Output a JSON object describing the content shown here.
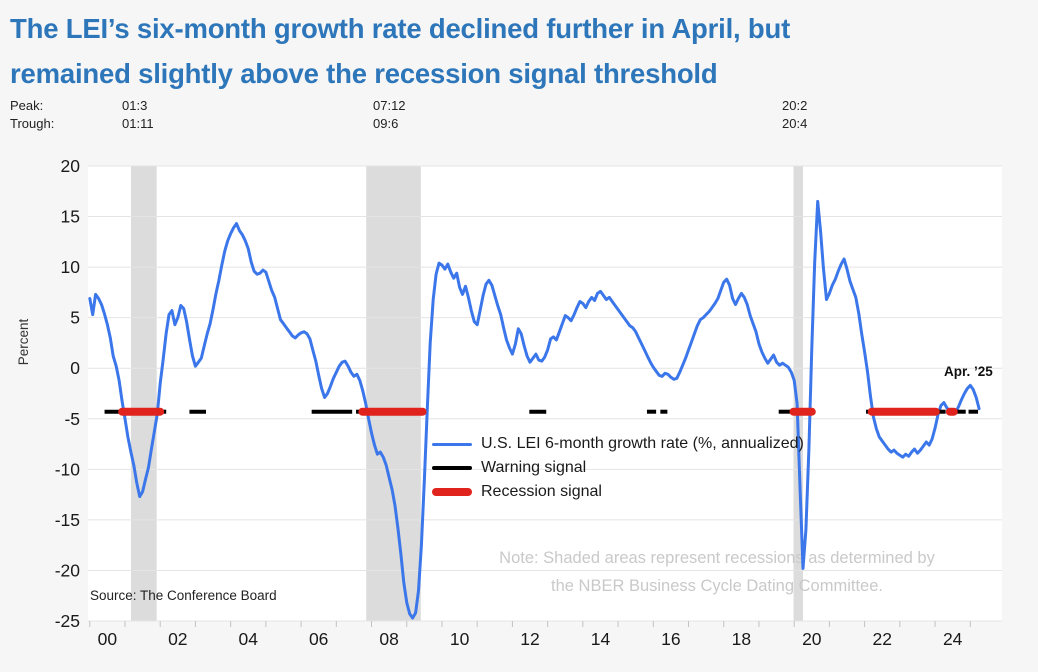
{
  "title": {
    "line1": "The LEI’s six-month growth rate declined further in April, but",
    "line2": "remained slightly above the recession signal threshold"
  },
  "header": {
    "peak_label": "Peak:",
    "trough_label": "Trough:",
    "events": [
      {
        "peak": "01:3",
        "trough": "01:11"
      },
      {
        "peak": "07:12",
        "trough": "09:6"
      },
      {
        "peak": "20:2",
        "trough": "20:4"
      }
    ]
  },
  "legend": {
    "items": [
      {
        "label": "U.S. LEI 6-month growth rate (%, annualized)",
        "style": "line"
      },
      {
        "label": "Warning signal",
        "style": "warning"
      },
      {
        "label": "Recession signal",
        "style": "recession"
      }
    ]
  },
  "annotations": {
    "last_point_label": "Apr. ’25",
    "note_line1": "Note: Shaded areas represent recessions as determined by",
    "note_line2": "the NBER Business Cycle Dating Committee.",
    "source": "Source: The Conference Board"
  },
  "colors": {
    "title": "#2d76ba",
    "line": "#3b77ea",
    "warning": "#000000",
    "recession": "#e0231c",
    "band": "#dcdcdc",
    "grid": "#e4e4e4",
    "tick": "#c2c2c2",
    "axis_text": "#1a1a1a",
    "note": "#c9c9c9",
    "background": "#f6f6f6",
    "plot_background": "#ffffff"
  },
  "chart_data": {
    "type": "line",
    "series_name": "U.S. LEI 6-month growth rate (%, annualized)",
    "ylabel": "Percent",
    "y_ticks": [
      20,
      15,
      10,
      5,
      0,
      -5,
      -10,
      -15,
      -20,
      -25
    ],
    "x_tick_labels": [
      "00",
      "02",
      "04",
      "06",
      "08",
      "10",
      "12",
      "14",
      "16",
      "18",
      "20",
      "22",
      "24"
    ],
    "x_minor_tick_years_start": 2000,
    "x_minor_tick_years_end": 2025,
    "x_range": [
      1999.95,
      2025.9
    ],
    "y_range": [
      -25,
      20
    ],
    "grid": "horizontal",
    "legend_position": "inside-center",
    "threshold_level": -4.3,
    "x_start": 2000.0,
    "x_step": 0.0833333,
    "values": [
      6.9,
      5.3,
      7.3,
      6.9,
      6.3,
      5.4,
      4.3,
      3.0,
      1.2,
      0.2,
      -1.2,
      -3.2,
      -5.0,
      -6.8,
      -8.3,
      -9.6,
      -11.3,
      -12.7,
      -12.2,
      -11.0,
      -9.8,
      -8.0,
      -6.3,
      -4.5,
      -1.5,
      0.8,
      3.4,
      5.3,
      5.7,
      4.3,
      5.0,
      6.2,
      5.9,
      4.6,
      2.8,
      1.2,
      0.2,
      0.6,
      1.0,
      2.2,
      3.4,
      4.4,
      5.8,
      7.4,
      8.7,
      10.2,
      11.6,
      12.6,
      13.3,
      13.9,
      14.3,
      13.6,
      13.2,
      12.6,
      11.8,
      10.5,
      9.6,
      9.3,
      9.4,
      9.7,
      9.5,
      8.6,
      7.7,
      7.0,
      5.9,
      4.8,
      4.4,
      4.0,
      3.6,
      3.2,
      3.0,
      3.3,
      3.5,
      3.6,
      3.4,
      2.9,
      1.8,
      0.7,
      -0.7,
      -2.0,
      -2.9,
      -2.5,
      -1.8,
      -1.0,
      -0.4,
      0.2,
      0.6,
      0.7,
      0.2,
      -0.4,
      -0.8,
      -0.6,
      -1.2,
      -2.2,
      -3.5,
      -5.0,
      -6.4,
      -7.6,
      -8.5,
      -8.3,
      -8.8,
      -9.6,
      -10.8,
      -12.0,
      -13.6,
      -15.8,
      -18.4,
      -21.2,
      -23.2,
      -24.3,
      -24.7,
      -24.2,
      -22.0,
      -17.5,
      -11.0,
      -4.0,
      2.5,
      6.8,
      9.3,
      10.4,
      10.2,
      9.8,
      10.3,
      9.5,
      8.9,
      9.4,
      8.0,
      7.3,
      8.1,
      7.0,
      5.7,
      4.6,
      4.3,
      5.7,
      7.2,
      8.3,
      8.7,
      8.2,
      7.2,
      6.2,
      5.3,
      4.0,
      2.8,
      2.0,
      1.4,
      2.4,
      3.9,
      3.4,
      2.2,
      1.2,
      0.6,
      1.0,
      1.4,
      0.8,
      0.7,
      1.1,
      1.8,
      2.9,
      3.1,
      2.8,
      3.6,
      4.4,
      5.2,
      5.0,
      4.7,
      5.3,
      6.0,
      6.6,
      6.4,
      6.0,
      6.6,
      7.0,
      6.7,
      7.4,
      7.6,
      7.2,
      6.8,
      7.0,
      6.6,
      6.2,
      5.8,
      5.4,
      5.0,
      4.6,
      4.2,
      4.0,
      3.6,
      3.0,
      2.4,
      1.8,
      1.2,
      0.6,
      0.1,
      -0.3,
      -0.7,
      -0.8,
      -0.5,
      -0.6,
      -0.9,
      -1.1,
      -1.0,
      -0.4,
      0.3,
      1.0,
      1.8,
      2.6,
      3.4,
      4.2,
      4.8,
      5.0,
      5.3,
      5.6,
      6.0,
      6.4,
      6.9,
      7.7,
      8.5,
      8.8,
      8.2,
      6.9,
      6.3,
      6.9,
      7.4,
      7.0,
      6.3,
      5.2,
      4.4,
      3.6,
      2.4,
      1.6,
      1.0,
      0.5,
      0.9,
      1.3,
      0.6,
      0.3,
      0.5,
      0.3,
      0.1,
      -0.4,
      -1.2,
      -3.5,
      -12.0,
      -19.8,
      -16.0,
      -8.0,
      2.0,
      10.5,
      16.5,
      13.5,
      9.8,
      6.8,
      7.4,
      8.2,
      8.8,
      9.6,
      10.3,
      10.8,
      9.8,
      8.6,
      7.8,
      7.0,
      5.4,
      3.4,
      1.6,
      -0.4,
      -2.8,
      -4.8,
      -6.0,
      -6.8,
      -7.2,
      -7.6,
      -8.0,
      -8.3,
      -8.1,
      -8.4,
      -8.6,
      -8.8,
      -8.5,
      -8.7,
      -8.3,
      -8.0,
      -8.4,
      -8.1,
      -7.7,
      -7.3,
      -7.6,
      -7.0,
      -5.9,
      -4.6,
      -3.7,
      -3.4,
      -3.9,
      -4.3,
      -4.5,
      -4.3,
      -3.8,
      -3.1,
      -2.5,
      -2.0,
      -1.7,
      -2.1,
      -2.9,
      -4.0
    ],
    "warning_segments": [
      [
        2000.42,
        2000.9
      ],
      [
        2002.0,
        2002.17
      ],
      [
        2002.83,
        2003.3
      ],
      [
        2006.3,
        2007.45
      ],
      [
        2007.56,
        2007.72
      ],
      [
        2012.48,
        2012.96
      ],
      [
        2015.82,
        2016.08
      ],
      [
        2016.2,
        2016.4
      ],
      [
        2019.56,
        2019.97
      ],
      [
        2022.04,
        2022.19
      ],
      [
        2024.02,
        2024.3
      ],
      [
        2024.6,
        2024.87
      ],
      [
        2024.95,
        2025.22
      ]
    ],
    "recession_segments": [
      [
        2000.92,
        2002.0
      ],
      [
        2007.74,
        2009.45
      ],
      [
        2019.98,
        2020.5
      ],
      [
        2022.2,
        2024.02
      ],
      [
        2024.42,
        2024.53
      ]
    ],
    "recession_bands": [
      [
        2001.17,
        2001.9
      ],
      [
        2007.85,
        2009.4
      ],
      [
        2019.98,
        2020.25
      ]
    ]
  }
}
